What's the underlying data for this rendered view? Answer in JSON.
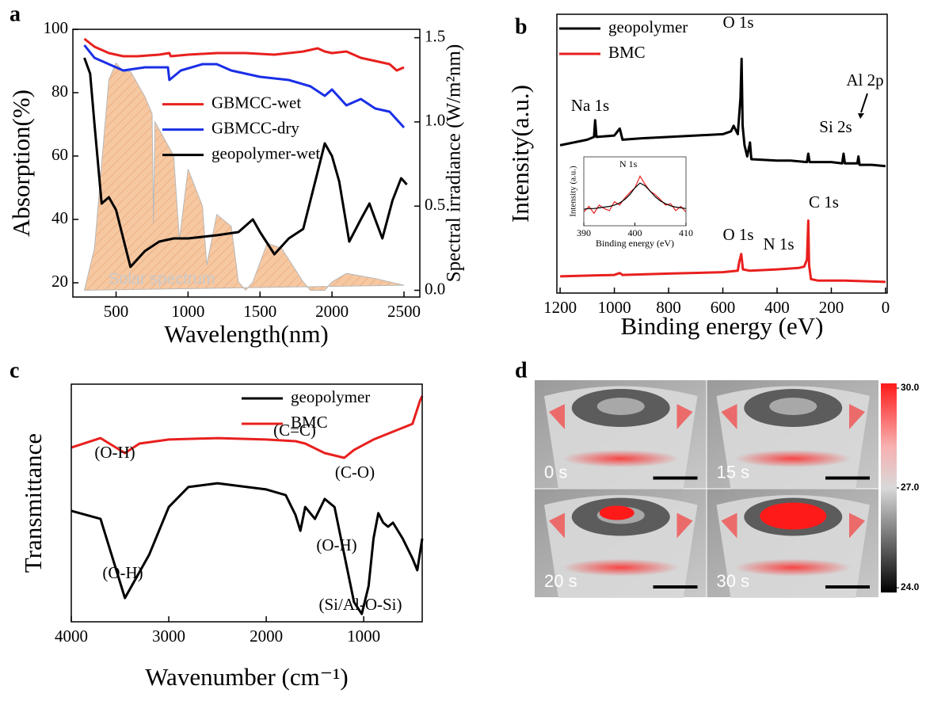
{
  "chart_data": [
    {
      "type": "line",
      "panel_label": "a",
      "xlabel": "Wavelength(nm)",
      "ylabel": "Absorption(%)",
      "y2label": "Spectral irradiance (W/m²nm)",
      "xlim": [
        200,
        2610
      ],
      "xticks": [
        500,
        1000,
        1500,
        2000,
        2500
      ],
      "ylim": [
        15.5,
        100
      ],
      "yticks": [
        20,
        40,
        60,
        80,
        100
      ],
      "y2lim": [
        -0.04,
        1.55
      ],
      "y2ticks": [
        {
          "value": 0,
          "label": "0.0"
        },
        {
          "value": 0.5,
          "label": "0.5"
        },
        {
          "value": 1,
          "label": "1.0"
        },
        {
          "value": 1.5,
          "label": "1.5"
        }
      ],
      "legend": "center left",
      "series": [
        {
          "name": "Solar spectrum",
          "type": "area",
          "axis": "y2",
          "color": "#f6c8a2",
          "x": [
            280,
            350,
            400,
            450,
            500,
            550,
            600,
            700,
            750,
            760,
            770,
            900,
            940,
            1000,
            1100,
            1130,
            1200,
            1300,
            1350,
            1400,
            1450,
            1550,
            1650,
            1800,
            1850,
            1950,
            2000,
            2100,
            2300,
            2400,
            2500
          ],
          "values": [
            0,
            0.25,
            0.75,
            1.25,
            1.35,
            1.3,
            1.3,
            1.15,
            1.05,
            0.4,
            1.0,
            0.8,
            0.3,
            0.72,
            0.5,
            0.15,
            0.45,
            0.38,
            0.05,
            0,
            0.05,
            0.28,
            0.25,
            0.05,
            0,
            0,
            0.05,
            0.1,
            0.07,
            0.05,
            0.03
          ]
        },
        {
          "name": "GBMCC-wet",
          "color": "#e8201e",
          "x": [
            280,
            350,
            450,
            550,
            650,
            800,
            870,
            880,
            1000,
            1200,
            1400,
            1600,
            1800,
            1900,
            1950,
            2000,
            2100,
            2200,
            2300,
            2400,
            2450,
            2500
          ],
          "values": [
            97,
            94.5,
            92.5,
            91.5,
            91.5,
            92,
            92.5,
            91.5,
            92,
            92.5,
            92.5,
            92,
            93,
            94,
            93,
            92.5,
            93,
            91,
            90,
            89,
            87,
            88
          ]
        },
        {
          "name": "GBMCC-dry",
          "color": "#1a2fe6",
          "x": [
            280,
            350,
            450,
            550,
            700,
            860,
            870,
            950,
            1100,
            1200,
            1300,
            1400,
            1500,
            1700,
            1850,
            1950,
            2000,
            2100,
            2200,
            2300,
            2400,
            2500
          ],
          "values": [
            95,
            91,
            89,
            87,
            88,
            88,
            84,
            87,
            89,
            89,
            87,
            86,
            85,
            84,
            82,
            79,
            81,
            76,
            78,
            75,
            74,
            69
          ]
        },
        {
          "name": "geopolymer-wet",
          "color": "#000000",
          "x": [
            280,
            320,
            350,
            400,
            450,
            500,
            600,
            700,
            800,
            900,
            1000,
            1200,
            1350,
            1450,
            1500,
            1600,
            1700,
            1800,
            1900,
            1950,
            2000,
            2050,
            2120,
            2200,
            2260,
            2300,
            2350,
            2420,
            2480,
            2520
          ],
          "values": [
            91,
            86,
            70,
            45,
            47,
            43,
            25,
            30,
            33,
            34,
            34,
            35,
            36,
            40,
            36,
            29,
            34,
            37,
            55,
            64,
            60,
            52,
            33,
            40,
            45,
            40,
            34,
            46,
            53,
            51
          ]
        }
      ]
    },
    {
      "type": "line",
      "panel_label": "b",
      "xlabel": "Binding energy (eV)",
      "ylabel": "Intensity(a.u.)",
      "xlim": [
        1212,
        -6
      ],
      "xticks": [
        1200,
        1000,
        800,
        600,
        400,
        200,
        0
      ],
      "ylim": [
        0,
        100
      ],
      "legend": "upper left",
      "series": [
        {
          "name": "geopolymer",
          "color": "#000000",
          "x": [
            1200,
            1150,
            1100,
            1075,
            1071,
            1066,
            1000,
            980,
            970,
            900,
            800,
            700,
            600,
            570,
            560,
            545,
            535,
            531,
            527,
            520,
            510,
            500,
            495,
            400,
            350,
            290,
            285,
            280,
            200,
            160,
            155,
            150,
            104,
            100,
            96,
            50,
            0
          ],
          "values": [
            53,
            54,
            55,
            56,
            62,
            56,
            56.5,
            59,
            55,
            55.5,
            56,
            56.5,
            57,
            58,
            60,
            57,
            70,
            84,
            60,
            53,
            49,
            54,
            48,
            47.5,
            47.5,
            47,
            50,
            47,
            47,
            46.5,
            50,
            46.5,
            46.5,
            49,
            46,
            46,
            45.5
          ]
        },
        {
          "name": "BMC",
          "color": "#e8201e",
          "x": [
            1200,
            1000,
            980,
            970,
            800,
            600,
            545,
            540,
            532,
            526,
            500,
            400,
            320,
            300,
            290,
            285,
            282,
            275,
            250,
            150,
            0
          ],
          "values": [
            6,
            6.5,
            7.2,
            6.5,
            7,
            7.5,
            8,
            11,
            14,
            8.5,
            8,
            8.5,
            9,
            9.5,
            12,
            26,
            10,
            5,
            4.5,
            4.5,
            4
          ]
        }
      ],
      "annotations": [
        "Na 1s",
        "O 1s",
        "Al 2p",
        "Si 2s",
        "O 1s",
        "N 1s",
        "C 1s"
      ],
      "inset": {
        "title": "N 1s",
        "xlabel": "Binding energy (eV)",
        "ylabel": "Intensity (a.u.)",
        "xlim": [
          390,
          410
        ],
        "xticks": [
          390,
          400,
          410
        ],
        "ylim": [
          0,
          100
        ],
        "series": [
          {
            "color": "#e8201e",
            "x": [
              390,
              391,
              392,
              393,
              394,
              395,
              396,
              397,
              398,
              399,
              400,
              401,
              402,
              403,
              404,
              405,
              406,
              407,
              408,
              409,
              410
            ],
            "values": [
              20,
              28,
              18,
              30,
              25,
              22,
              35,
              30,
              40,
              48,
              55,
              72,
              60,
              50,
              45,
              38,
              30,
              32,
              22,
              28,
              20
            ]
          },
          {
            "color": "#000000",
            "x": [
              390,
              391,
              392,
              393,
              394,
              395,
              396,
              397,
              398,
              399,
              400,
              401,
              402,
              403,
              404,
              405,
              406,
              407,
              408,
              409,
              410
            ],
            "values": [
              24,
              25,
              25,
              26,
              27,
              28,
              30,
              33,
              38,
              45,
              55,
              62,
              58,
              50,
              42,
              36,
              32,
              29,
              27,
              26,
              25
            ]
          }
        ]
      }
    },
    {
      "type": "line",
      "panel_label": "c",
      "xlabel": "Wavenumber (cm⁻¹)",
      "ylabel": "Transmittance",
      "xlim": [
        4000,
        400
      ],
      "xticks": [
        4000,
        3000,
        2000,
        1000
      ],
      "ylim": [
        0,
        100
      ],
      "legend": "upper right",
      "series": [
        {
          "name": "geopolymer",
          "color": "#000000",
          "x": [
            4000,
            3700,
            3450,
            3200,
            3000,
            2800,
            2500,
            2000,
            1800,
            1700,
            1650,
            1600,
            1500,
            1400,
            1300,
            1200,
            1100,
            1020,
            950,
            900,
            850,
            800,
            750,
            700,
            600,
            500,
            450,
            400
          ],
          "values": [
            46.7,
            43.3,
            10,
            28.3,
            48.3,
            56.7,
            58.3,
            55.7,
            53.3,
            45,
            38.3,
            48.3,
            43.3,
            51.7,
            48.3,
            28.3,
            8.3,
            3.3,
            15,
            35,
            45.7,
            41.7,
            40,
            41.7,
            35,
            26.7,
            21.7,
            35
          ]
        },
        {
          "name": "BMC",
          "color": "#e8201e",
          "x": [
            4000,
            3700,
            3450,
            3300,
            3000,
            2500,
            2000,
            1700,
            1600,
            1400,
            1200,
            1100,
            900,
            700,
            500,
            420,
            400
          ],
          "values": [
            73.3,
            77.3,
            71,
            75,
            76.7,
            77.3,
            76.7,
            76,
            75,
            71,
            69,
            72.3,
            76.7,
            80,
            83.3,
            93.3,
            95
          ]
        }
      ],
      "annotations": [
        "(O-H)",
        "(C=C)",
        "(C-O)",
        "(O-H)",
        "(O-H)",
        "(Si/Al-O-Si)"
      ]
    },
    {
      "type": "thermal-image",
      "panel_label": "d",
      "frames": [
        "0 s",
        "15 s",
        "20 s",
        "30 s"
      ],
      "colorbar_lim": [
        24,
        30
      ],
      "colorbar_ticks": [
        {
          "value": 30,
          "label": "30.0"
        },
        {
          "value": 27,
          "label": "27.0"
        },
        {
          "value": 24,
          "label": "24.0"
        }
      ]
    }
  ]
}
